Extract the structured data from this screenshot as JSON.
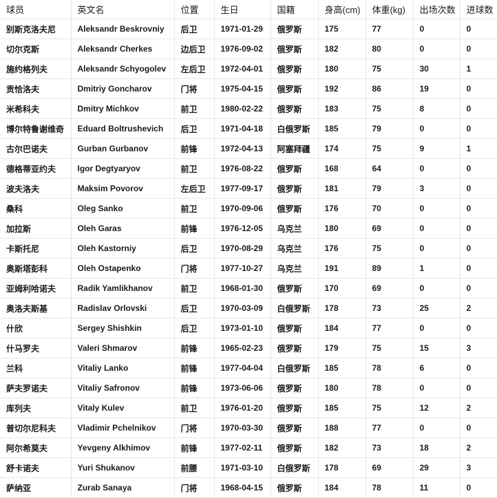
{
  "table": {
    "headers": [
      "球员",
      "英文名",
      "位置",
      "生日",
      "国籍",
      "身高(cm)",
      "体重(kg)",
      "出场次数",
      "进球数"
    ],
    "rows": [
      [
        "别斯克洛夫尼",
        "Aleksandr Beskrovniy",
        "后卫",
        "1971-01-29",
        "俄罗斯",
        "175",
        "77",
        "0",
        "0"
      ],
      [
        "切尔克斯",
        "Aleksandr Cherkes",
        "边后卫",
        "1976-09-02",
        "俄罗斯",
        "182",
        "80",
        "0",
        "0"
      ],
      [
        "施约格列夫",
        "Aleksandr Schyogolev",
        "左后卫",
        "1972-04-01",
        "俄罗斯",
        "180",
        "75",
        "30",
        "1"
      ],
      [
        "贡恰洛夫",
        "Dmitriy Goncharov",
        "门将",
        "1975-04-15",
        "俄罗斯",
        "192",
        "86",
        "19",
        "0"
      ],
      [
        "米希科夫",
        "Dmitry Michkov",
        "前卫",
        "1980-02-22",
        "俄罗斯",
        "183",
        "75",
        "8",
        "0"
      ],
      [
        "博尔特鲁谢维奇",
        "Eduard Boltrushevich",
        "后卫",
        "1971-04-18",
        "白俄罗斯",
        "185",
        "79",
        "0",
        "0"
      ],
      [
        "古尔巴诺夫",
        "Gurban Gurbanov",
        "前锋",
        "1972-04-13",
        "阿塞拜疆",
        "174",
        "75",
        "9",
        "1"
      ],
      [
        "德格蒂亚约夫",
        "Igor Degtyaryov",
        "前卫",
        "1976-08-22",
        "俄罗斯",
        "168",
        "64",
        "0",
        "0"
      ],
      [
        "波夫洛夫",
        "Maksim Povorov",
        "左后卫",
        "1977-09-17",
        "俄罗斯",
        "181",
        "79",
        "3",
        "0"
      ],
      [
        "桑科",
        "Oleg Sanko",
        "前卫",
        "1970-09-06",
        "俄罗斯",
        "176",
        "70",
        "0",
        "0"
      ],
      [
        "加拉斯",
        "Oleh Garas",
        "前锋",
        "1976-12-05",
        "乌克兰",
        "180",
        "69",
        "0",
        "0"
      ],
      [
        "卡斯托尼",
        "Oleh Kastorniy",
        "后卫",
        "1970-08-29",
        "乌克兰",
        "176",
        "75",
        "0",
        "0"
      ],
      [
        "奥斯塔彭科",
        "Oleh Ostapenko",
        "门将",
        "1977-10-27",
        "乌克兰",
        "191",
        "89",
        "1",
        "0"
      ],
      [
        "亚姆利哈诺夫",
        "Radik Yamlikhanov",
        "前卫",
        "1968-01-30",
        "俄罗斯",
        "170",
        "69",
        "0",
        "0"
      ],
      [
        "奥洛夫斯基",
        "Radislav Orlovski",
        "后卫",
        "1970-03-09",
        "白俄罗斯",
        "178",
        "73",
        "25",
        "2"
      ],
      [
        "什欣",
        "Sergey Shishkin",
        "后卫",
        "1973-01-10",
        "俄罗斯",
        "184",
        "77",
        "0",
        "0"
      ],
      [
        "什马罗夫",
        "Valeri Shmarov",
        "前锋",
        "1965-02-23",
        "俄罗斯",
        "179",
        "75",
        "15",
        "3"
      ],
      [
        "兰科",
        "Vitaliy Lanko",
        "前锋",
        "1977-04-04",
        "白俄罗斯",
        "185",
        "78",
        "6",
        "0"
      ],
      [
        "萨夫罗诺夫",
        "Vitaliy Safronov",
        "前锋",
        "1973-06-06",
        "俄罗斯",
        "180",
        "78",
        "0",
        "0"
      ],
      [
        "库列夫",
        "Vitaly Kulev",
        "前卫",
        "1976-01-20",
        "俄罗斯",
        "185",
        "75",
        "12",
        "2"
      ],
      [
        "普切尔尼科夫",
        "Vladimir Pchelnikov",
        "门将",
        "1970-03-30",
        "俄罗斯",
        "188",
        "77",
        "0",
        "0"
      ],
      [
        "阿尔希莫夫",
        "Yevgeny Alkhimov",
        "前锋",
        "1977-02-11",
        "俄罗斯",
        "182",
        "73",
        "18",
        "2"
      ],
      [
        "舒卡诺夫",
        "Yuri Shukanov",
        "前腰",
        "1971-03-10",
        "白俄罗斯",
        "178",
        "69",
        "29",
        "3"
      ],
      [
        "萨纳亚",
        "Zurab Sanaya",
        "门将",
        "1968-04-15",
        "俄罗斯",
        "184",
        "78",
        "11",
        "0"
      ]
    ]
  }
}
